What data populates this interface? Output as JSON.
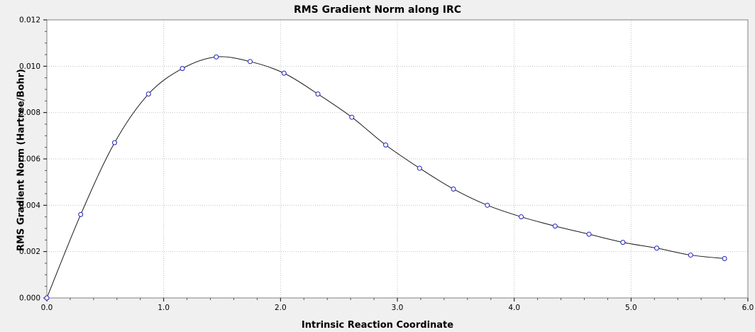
{
  "chart_data": {
    "type": "line",
    "title": "RMS Gradient Norm along IRC",
    "xlabel": "Intrinsic Reaction Coordinate",
    "ylabel": "RMS Gradient Norm (Hartree/Bohr)",
    "x": [
      0.0,
      0.29,
      0.58,
      0.87,
      1.16,
      1.45,
      1.74,
      2.03,
      2.32,
      2.61,
      2.9,
      3.19,
      3.48,
      3.77,
      4.06,
      4.35,
      4.64,
      4.93,
      5.22,
      5.51,
      5.8
    ],
    "y": [
      0.0,
      0.0036,
      0.0067,
      0.0088,
      0.0099,
      0.0104,
      0.0102,
      0.0097,
      0.0088,
      0.0078,
      0.0066,
      0.0056,
      0.0047,
      0.004,
      0.0035,
      0.0031,
      0.00275,
      0.0024,
      0.00215,
      0.00185,
      0.0017
    ],
    "xlim": [
      0.0,
      6.0
    ],
    "ylim": [
      0.0,
      0.012
    ],
    "xticks": [
      0,
      1,
      2,
      3,
      4,
      5,
      6
    ],
    "xtick_labels": [
      "0.0",
      "1.0",
      "2.0",
      "3.0",
      "4.0",
      "5.0",
      "6.0"
    ],
    "yticks": [
      0.0,
      0.002,
      0.004,
      0.006,
      0.008,
      0.01,
      0.012
    ],
    "ytick_labels": [
      "0.000",
      "0.002",
      "0.004",
      "0.006",
      "0.008",
      "0.010",
      "0.012"
    ],
    "x_minor_step": 0.2,
    "y_minor_step": 0.0005,
    "grid": "dotted",
    "legend": "none",
    "line_color": "#1a1a1a",
    "marker": "circle-open",
    "marker_color": "#2222bb",
    "marker_fill": "#ffffff",
    "background_color": "#f0f0f0",
    "plot_background": "#ffffff",
    "plot_border_color": "#808080",
    "grid_color": "#c0c0c0",
    "tick_label_color": "#000000"
  }
}
